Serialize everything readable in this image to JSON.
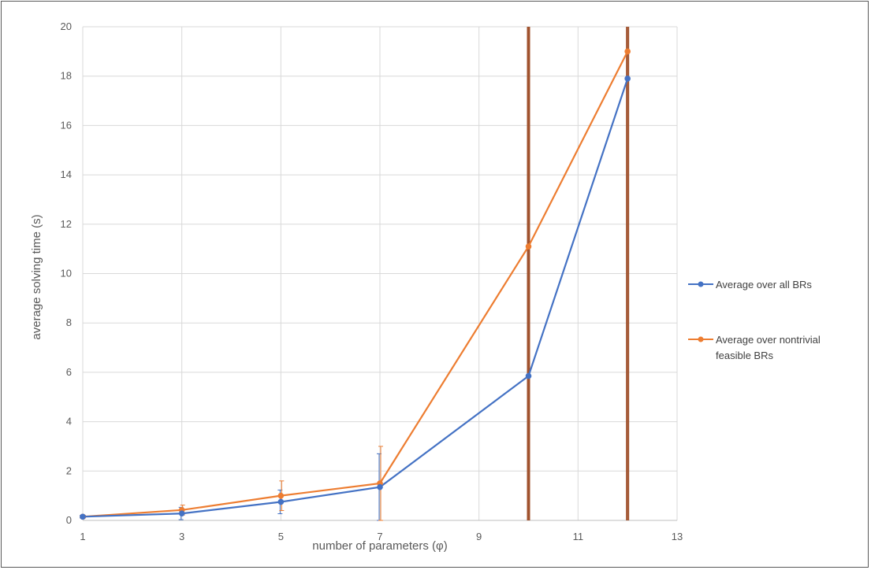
{
  "chart_data": {
    "type": "line",
    "xlabel": "number of parameters (φ)",
    "ylabel": "average solving time  (s)",
    "xlim": [
      1,
      13
    ],
    "ylim": [
      0,
      20
    ],
    "xticks": [
      1,
      3,
      5,
      7,
      9,
      11,
      13
    ],
    "yticks": [
      0,
      2,
      4,
      6,
      8,
      10,
      12,
      14,
      16,
      18,
      20
    ],
    "grid": true,
    "legend_position": "right",
    "series": [
      {
        "name": "Average over all BRs",
        "color": "#4472C4",
        "x": [
          1,
          3,
          5,
          7,
          10,
          12
        ],
        "y": [
          0.15,
          0.28,
          0.75,
          1.35,
          5.85,
          17.9
        ],
        "error": [
          0.05,
          0.25,
          0.48,
          1.35,
          25,
          25
        ]
      },
      {
        "name": "Average over nontrivial feasible BRs",
        "color": "#ED7D31",
        "x": [
          1,
          3,
          5,
          7,
          10,
          12
        ],
        "y": [
          0.15,
          0.42,
          1.0,
          1.5,
          11.1,
          19.0
        ],
        "error": [
          0.05,
          0.2,
          0.6,
          1.5,
          25,
          25
        ]
      }
    ],
    "error_bar_color": "#A0522D"
  }
}
